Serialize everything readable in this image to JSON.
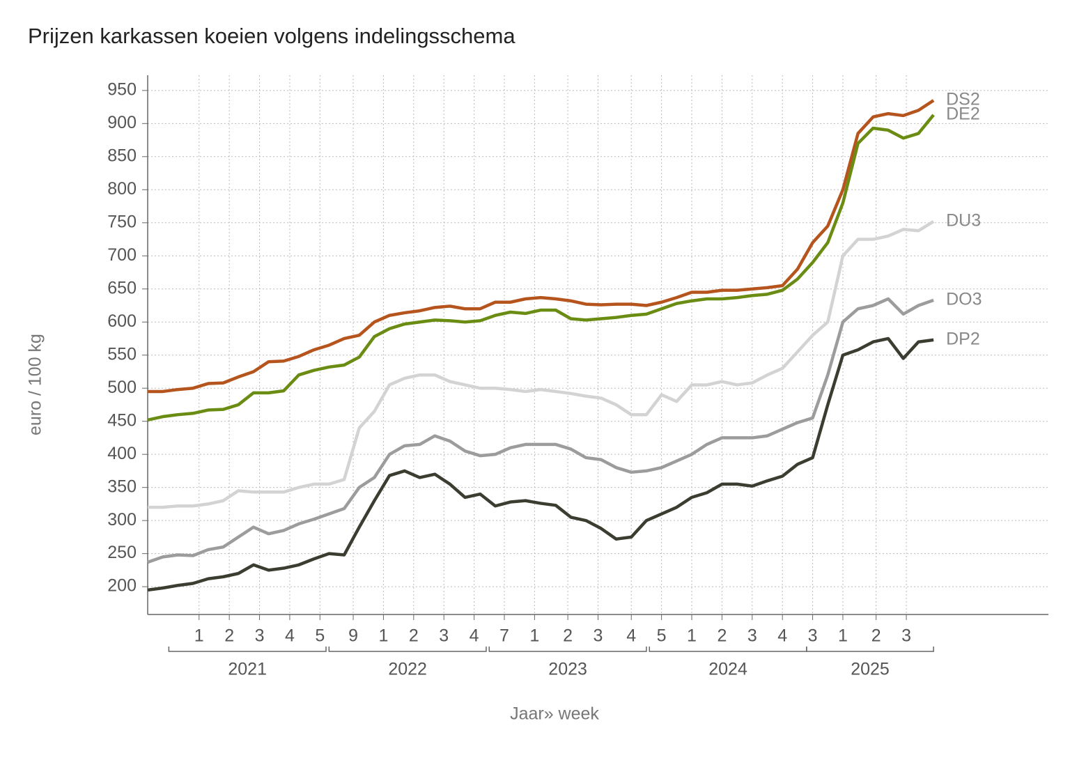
{
  "chart_data": {
    "type": "line",
    "title": "Prijzen karkassen koeien volgens indelingsschema",
    "ylabel": "euro / 100 kg",
    "xlabel": "Jaar» week",
    "grid": true,
    "xlim": [
      0,
      298
    ],
    "ylim": [
      158,
      973
    ],
    "yticks": [
      200,
      250,
      300,
      350,
      400,
      450,
      500,
      550,
      600,
      650,
      700,
      750,
      800,
      850,
      900,
      950
    ],
    "xticks": [
      {
        "value": 17,
        "label": "1"
      },
      {
        "value": 27,
        "label": "2"
      },
      {
        "value": 37,
        "label": "3"
      },
      {
        "value": 47,
        "label": "4"
      },
      {
        "value": 57,
        "label": "5"
      },
      {
        "value": 68,
        "label": "9"
      },
      {
        "value": 78,
        "label": "1"
      },
      {
        "value": 88,
        "label": "2"
      },
      {
        "value": 98,
        "label": "3"
      },
      {
        "value": 108,
        "label": "4"
      },
      {
        "value": 118,
        "label": "7"
      },
      {
        "value": 128,
        "label": "1"
      },
      {
        "value": 139,
        "label": "2"
      },
      {
        "value": 149,
        "label": "3"
      },
      {
        "value": 160,
        "label": "4"
      },
      {
        "value": 170,
        "label": "5"
      },
      {
        "value": 180,
        "label": "1"
      },
      {
        "value": 190,
        "label": "2"
      },
      {
        "value": 200,
        "label": "3"
      },
      {
        "value": 210,
        "label": "4"
      },
      {
        "value": 220,
        "label": "3"
      },
      {
        "value": 230,
        "label": "1"
      },
      {
        "value": 241,
        "label": "2"
      },
      {
        "value": 251,
        "label": "3"
      }
    ],
    "years": [
      {
        "label": "2021",
        "start": 7,
        "end": 59
      },
      {
        "label": "2022",
        "start": 60,
        "end": 112
      },
      {
        "label": "2023",
        "start": 113,
        "end": 165
      },
      {
        "label": "2024",
        "start": 166,
        "end": 218
      },
      {
        "label": "2025",
        "start": 218,
        "end": 260
      }
    ],
    "x": [
      0,
      5,
      10,
      15,
      20,
      25,
      30,
      35,
      40,
      45,
      50,
      55,
      60,
      65,
      70,
      75,
      80,
      85,
      90,
      95,
      100,
      105,
      110,
      115,
      120,
      125,
      130,
      135,
      140,
      145,
      150,
      155,
      160,
      165,
      170,
      175,
      180,
      185,
      190,
      195,
      200,
      205,
      210,
      215,
      220,
      225,
      230,
      235,
      240,
      245,
      250,
      255,
      260
    ],
    "series": [
      {
        "name": "DS2",
        "color": "#b5541c",
        "values": [
          495,
          495,
          498,
          500,
          507,
          508,
          517,
          525,
          540,
          541,
          548,
          558,
          565,
          575,
          580,
          600,
          610,
          614,
          617,
          622,
          624,
          620,
          620,
          630,
          630,
          635,
          637,
          635,
          632,
          627,
          626,
          627,
          627,
          625,
          630,
          637,
          645,
          645,
          648,
          648,
          650,
          652,
          655,
          680,
          720,
          745,
          800,
          885,
          910,
          915,
          912,
          920,
          935
        ]
      },
      {
        "name": "DE2",
        "color": "#6a8c12",
        "values": [
          452,
          457,
          460,
          462,
          467,
          468,
          475,
          493,
          493,
          496,
          520,
          527,
          532,
          535,
          547,
          578,
          590,
          597,
          600,
          603,
          602,
          600,
          602,
          610,
          615,
          613,
          618,
          618,
          605,
          603,
          605,
          607,
          610,
          612,
          620,
          628,
          632,
          635,
          635,
          637,
          640,
          642,
          648,
          665,
          690,
          720,
          780,
          870,
          893,
          890,
          878,
          885,
          913
        ]
      },
      {
        "name": "DU3",
        "color": "#d3d3d3",
        "values": [
          320,
          320,
          322,
          322,
          325,
          330,
          345,
          343,
          343,
          343,
          350,
          355,
          355,
          362,
          440,
          465,
          505,
          515,
          520,
          520,
          510,
          505,
          500,
          500,
          498,
          495,
          498,
          495,
          492,
          488,
          485,
          475,
          460,
          460,
          490,
          480,
          505,
          505,
          510,
          505,
          508,
          520,
          530,
          555,
          580,
          600,
          700,
          725,
          725,
          730,
          740,
          738,
          752
        ]
      },
      {
        "name": "DO3",
        "color": "#9c9c9c",
        "values": [
          237,
          245,
          248,
          247,
          256,
          260,
          275,
          290,
          280,
          285,
          295,
          302,
          310,
          318,
          350,
          365,
          400,
          413,
          415,
          428,
          420,
          405,
          398,
          400,
          410,
          415,
          415,
          415,
          408,
          395,
          392,
          380,
          373,
          375,
          380,
          390,
          400,
          415,
          425,
          425,
          425,
          428,
          438,
          448,
          455,
          520,
          600,
          620,
          625,
          635,
          612,
          625,
          633
        ]
      },
      {
        "name": "DP2",
        "color": "#3a3d30",
        "values": [
          195,
          198,
          202,
          205,
          212,
          215,
          220,
          233,
          225,
          228,
          233,
          242,
          250,
          248,
          290,
          330,
          368,
          375,
          365,
          370,
          355,
          335,
          340,
          322,
          328,
          330,
          326,
          323,
          305,
          300,
          288,
          272,
          275,
          300,
          310,
          320,
          335,
          342,
          355,
          355,
          352,
          360,
          367,
          385,
          395,
          475,
          550,
          558,
          570,
          575,
          545,
          570,
          573
        ]
      }
    ]
  }
}
